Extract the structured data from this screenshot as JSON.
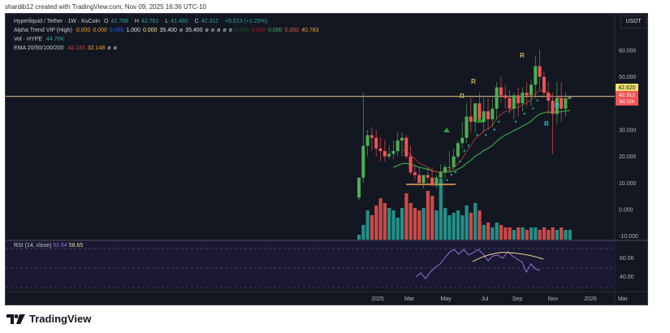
{
  "credit": "shardib12 created with TradingView.com, Nov 09, 2025 16:36 UTC-10",
  "legend": {
    "symbol": "Hyperliquid / Tether · 1W · KuCoin",
    "ohlc": {
      "open_label": "O",
      "open": "41.798",
      "high_label": "H",
      "high": "42.761",
      "low_label": "L",
      "low": "41.480",
      "close_label": "C",
      "close": "42.312",
      "change": "+0.513 (+1.23%)"
    },
    "alpha_trend": {
      "label": "Alpha Trend VIP (High)",
      "values": [
        "0.000",
        "0.000",
        "0.000",
        "1.000",
        "0.000",
        "35.400",
        "ø",
        "35.400",
        "ø",
        "ø",
        "ø",
        "ø",
        "ø",
        "0.000",
        "0.000",
        "0.000",
        "0.000",
        "40.783"
      ]
    },
    "volume": {
      "label": "Vol · HYPE",
      "value": "44.76K"
    },
    "ema": {
      "label": "EMA 20/50/100/200",
      "values": [
        "42.183",
        "32.148",
        "ø",
        "ø"
      ]
    }
  },
  "currency_button": "USDT",
  "price_axis": {
    "ticks": [
      "60.000",
      "50.000",
      "30.000",
      "20.000",
      "10.000",
      "0.000",
      "-10.000"
    ],
    "label_tag_yellow": "42.620",
    "label_tag_red_price": "42.312",
    "label_tag_red_countdown": "6d 22h"
  },
  "time_axis": {
    "ticks": [
      "2025",
      "Mar",
      "May",
      "Jul",
      "Sep",
      "Nov",
      "2026",
      "Mar"
    ]
  },
  "rsi": {
    "label": "RSI (14, close)",
    "rsi_value": "52.64",
    "ma_value": "58.65",
    "ticks": [
      "60.00",
      "40.00"
    ]
  },
  "signals": {
    "resistance_markers": [
      "R",
      "R",
      "R",
      "R",
      "R"
    ]
  },
  "brand": "TradingView",
  "colors": {
    "up": "#4caf50",
    "down": "#f05454",
    "vol_up": "#26a69a",
    "vol_down": "#ef5350",
    "ema20": "#c0392b",
    "ema50": "#2e9e3e",
    "level": "#d4b45a",
    "rsi": "#9c6fd6",
    "rsi_ma": "#e8d98a"
  },
  "chart_data": {
    "type": "candlestick",
    "title": "Hyperliquid / Tether · 1W · KuCoin",
    "ylabel": "USDT",
    "ylim": [
      -10,
      65
    ],
    "horizontal_level": 42.62,
    "x": [
      "2024-11-25",
      "2024-12-02",
      "2024-12-09",
      "2024-12-16",
      "2024-12-23",
      "2024-12-30",
      "2025-01-06",
      "2025-01-13",
      "2025-01-20",
      "2025-01-27",
      "2025-02-03",
      "2025-02-10",
      "2025-02-17",
      "2025-02-24",
      "2025-03-03",
      "2025-03-10",
      "2025-03-17",
      "2025-03-24",
      "2025-03-31",
      "2025-04-07",
      "2025-04-14",
      "2025-04-21",
      "2025-04-28",
      "2025-05-05",
      "2025-05-12",
      "2025-05-19",
      "2025-05-26",
      "2025-06-02",
      "2025-06-09",
      "2025-06-16",
      "2025-06-23",
      "2025-06-30",
      "2025-07-07",
      "2025-07-14",
      "2025-07-21",
      "2025-07-28",
      "2025-08-04",
      "2025-08-11",
      "2025-08-18",
      "2025-08-25",
      "2025-09-01",
      "2025-09-08",
      "2025-09-15",
      "2025-09-22",
      "2025-09-29",
      "2025-10-06",
      "2025-10-13",
      "2025-10-20",
      "2025-10-27",
      "2025-11-03"
    ],
    "open": [
      4.5,
      12,
      24,
      28,
      27,
      23,
      22,
      20,
      21,
      22,
      26,
      27,
      20,
      14,
      13,
      10,
      13,
      12,
      9,
      12,
      14,
      16,
      16,
      20,
      25,
      27,
      35,
      33,
      40,
      33,
      37,
      34,
      38,
      46,
      43,
      42,
      38,
      43,
      40,
      44,
      43,
      47,
      54,
      50,
      44,
      41,
      36,
      42,
      38,
      41.8
    ],
    "high": [
      9,
      44,
      30,
      31,
      30,
      27,
      26,
      24,
      26,
      29,
      29,
      28,
      24,
      17,
      16,
      13,
      16,
      16,
      13,
      17,
      17,
      22,
      23,
      26,
      33,
      40,
      42,
      40,
      44,
      42,
      42,
      42,
      48,
      50,
      47,
      45,
      44,
      46,
      46,
      48,
      49,
      58,
      60,
      52,
      48,
      44,
      48,
      48,
      44,
      42.8
    ],
    "low": [
      3.5,
      10,
      20,
      22,
      20,
      18,
      18,
      19,
      19,
      20,
      20,
      19,
      13,
      11,
      10,
      8,
      9,
      9,
      8,
      11,
      12,
      14,
      15,
      19,
      23,
      25,
      29,
      29,
      33,
      29,
      30,
      31,
      34,
      40,
      38,
      36,
      34,
      35,
      37,
      39,
      39,
      42,
      45,
      43,
      36,
      21,
      32,
      33,
      35,
      41.5
    ],
    "close": [
      12,
      24,
      28,
      27,
      23,
      22,
      20,
      21,
      22,
      26,
      27,
      20,
      14,
      13,
      10,
      13,
      12,
      9,
      12,
      14,
      16,
      16,
      20,
      25,
      27,
      35,
      33,
      40,
      33,
      37,
      34,
      38,
      46,
      43,
      42,
      38,
      43,
      40,
      44,
      43,
      47,
      54,
      50,
      44,
      41,
      36,
      42,
      38,
      41.8,
      42.3
    ],
    "series": [
      {
        "name": "EMA 20",
        "last": 42.183
      },
      {
        "name": "EMA 50",
        "last": 32.148
      }
    ],
    "rsi": {
      "ylim": [
        20,
        80
      ],
      "rsi_last": 52.64,
      "ma_last": 58.65,
      "bands": [
        70,
        50,
        30
      ]
    }
  }
}
